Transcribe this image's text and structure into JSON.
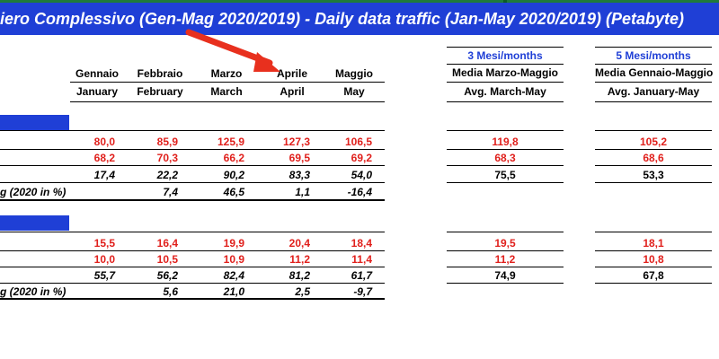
{
  "title": "iero Complessivo (Gen-Mag 2020/2019) - Daily data traffic (Jan-May 2020/2019) (Petabyte)",
  "months": [
    {
      "it": "Gennaio",
      "en": "January"
    },
    {
      "it": "Febbraio",
      "en": "February"
    },
    {
      "it": "Marzo",
      "en": "March"
    },
    {
      "it": "Aprile",
      "en": "April"
    },
    {
      "it": "Maggio",
      "en": "May"
    }
  ],
  "summary_3": {
    "head": "3 Mesi/months",
    "it": "Media Marzo-Maggio",
    "en": "Avg. March-May"
  },
  "summary_5": {
    "head": "5 Mesi/months",
    "it": "Media Gennaio-Maggio",
    "en": "Avg. January-May"
  },
  "growth_label": "g  (2020 in %)",
  "section1": {
    "row2020": [
      "80,0",
      "85,9",
      "125,9",
      "127,3",
      "106,5"
    ],
    "row2019": [
      "68,2",
      "70,3",
      "66,2",
      "69,5",
      "69,2"
    ],
    "diff": [
      "17,4",
      "22,2",
      "90,2",
      "83,3",
      "54,0"
    ],
    "growth": [
      "",
      "7,4",
      "46,5",
      "1,1",
      "-16,4"
    ],
    "avg3": [
      "119,8",
      "68,3",
      "75,5"
    ],
    "avg5": [
      "105,2",
      "68,6",
      "53,3"
    ]
  },
  "section2": {
    "row2020": [
      "15,5",
      "16,4",
      "19,9",
      "20,4",
      "18,4"
    ],
    "row2019": [
      "10,0",
      "10,5",
      "10,9",
      "11,2",
      "11,4"
    ],
    "diff": [
      "55,7",
      "56,2",
      "82,4",
      "81,2",
      "61,7"
    ],
    "growth": [
      "",
      "5,6",
      "21,0",
      "2,5",
      "-9,7"
    ],
    "avg3": [
      "19,5",
      "11,2",
      "74,9"
    ],
    "avg5": [
      "18,1",
      "10,8",
      "67,8"
    ]
  },
  "colors": {
    "accent_blue": "#1f3fd6",
    "value_red": "#e0201c",
    "annotation_arrow": "#e8301e",
    "sheet_green": "#1f7a3a"
  }
}
